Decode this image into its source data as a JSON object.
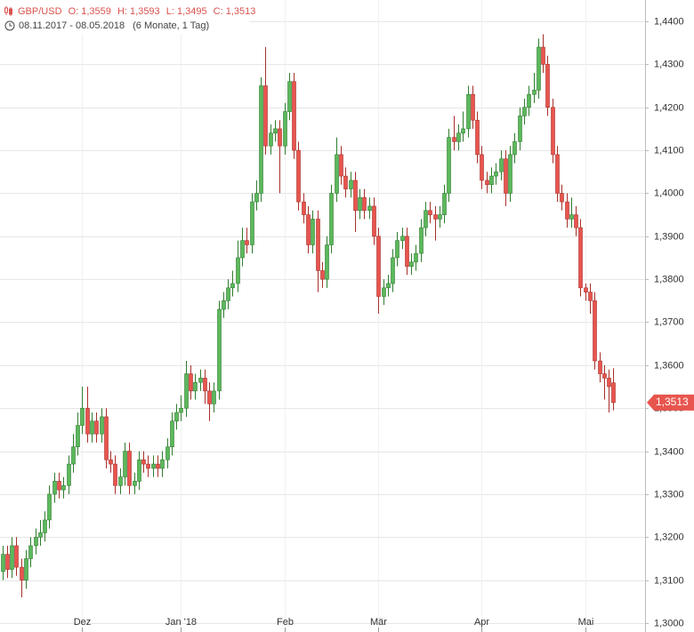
{
  "chart_data": {
    "type": "candlestick",
    "symbol": "GBP/USD",
    "last_labels": {
      "open": "O: 1,3559",
      "high": "H: 1,3593",
      "low": "L: 1,3495",
      "close": "C: 1,3513"
    },
    "date_range": "08.11.2017 - 08.05.2018",
    "period": "(6 Monate, 1 Tag)",
    "last_price_label": "1,3513",
    "up_color": "#5cb85c",
    "down_color": "#e8554e",
    "ylim": [
      1.3,
      1.44
    ],
    "yticks": [
      {
        "value": 1.3,
        "label": "1,3000"
      },
      {
        "value": 1.31,
        "label": "1,3100"
      },
      {
        "value": 1.32,
        "label": "1,3200"
      },
      {
        "value": 1.33,
        "label": "1,3300"
      },
      {
        "value": 1.34,
        "label": "1,3400"
      },
      {
        "value": 1.35,
        "label": "1,3500"
      },
      {
        "value": 1.36,
        "label": "1,3600"
      },
      {
        "value": 1.37,
        "label": "1,3700"
      },
      {
        "value": 1.38,
        "label": "1,3800"
      },
      {
        "value": 1.39,
        "label": "1,3900"
      },
      {
        "value": 1.4,
        "label": "1,4000"
      },
      {
        "value": 1.41,
        "label": "1,4100"
      },
      {
        "value": 1.42,
        "label": "1,4200"
      },
      {
        "value": 1.43,
        "label": "1,4300"
      },
      {
        "value": 1.44,
        "label": "1,4400"
      }
    ],
    "xticks": [
      {
        "value": 17,
        "label": "Dez"
      },
      {
        "value": 38,
        "label": "Jan '18"
      },
      {
        "value": 60,
        "label": "Feb"
      },
      {
        "value": 80,
        "label": "Mär"
      },
      {
        "value": 102,
        "label": "Apr"
      },
      {
        "value": 124,
        "label": "Mai"
      }
    ],
    "grid": true,
    "series": [
      {
        "name": "GBP/USD",
        "ohlc": [
          [
            1.312,
            1.318,
            1.31,
            1.316
          ],
          [
            1.316,
            1.318,
            1.3105,
            1.3125
          ],
          [
            1.3125,
            1.32,
            1.3105,
            1.318
          ],
          [
            1.318,
            1.32,
            1.311,
            1.313
          ],
          [
            1.313,
            1.315,
            1.306,
            1.31
          ],
          [
            1.31,
            1.317,
            1.308,
            1.315
          ],
          [
            1.315,
            1.32,
            1.313,
            1.318
          ],
          [
            1.318,
            1.322,
            1.316,
            1.32
          ],
          [
            1.32,
            1.324,
            1.318,
            1.321
          ],
          [
            1.321,
            1.326,
            1.319,
            1.324
          ],
          [
            1.324,
            1.332,
            1.322,
            1.33
          ],
          [
            1.33,
            1.335,
            1.328,
            1.333
          ],
          [
            1.333,
            1.335,
            1.329,
            1.331
          ],
          [
            1.331,
            1.334,
            1.329,
            1.332
          ],
          [
            1.332,
            1.339,
            1.33,
            1.337
          ],
          [
            1.337,
            1.344,
            1.335,
            1.341
          ],
          [
            1.341,
            1.349,
            1.339,
            1.346
          ],
          [
            1.346,
            1.355,
            1.344,
            1.35
          ],
          [
            1.35,
            1.355,
            1.342,
            1.344
          ],
          [
            1.344,
            1.349,
            1.342,
            1.347
          ],
          [
            1.347,
            1.349,
            1.342,
            1.344
          ],
          [
            1.344,
            1.35,
            1.342,
            1.348
          ],
          [
            1.348,
            1.35,
            1.336,
            1.338
          ],
          [
            1.338,
            1.34,
            1.335,
            1.337
          ],
          [
            1.337,
            1.339,
            1.33,
            1.332
          ],
          [
            1.332,
            1.336,
            1.33,
            1.334
          ],
          [
            1.334,
            1.342,
            1.332,
            1.34
          ],
          [
            1.34,
            1.342,
            1.33,
            1.332
          ],
          [
            1.332,
            1.335,
            1.33,
            1.333
          ],
          [
            1.333,
            1.34,
            1.331,
            1.338
          ],
          [
            1.338,
            1.34,
            1.335,
            1.337
          ],
          [
            1.337,
            1.339,
            1.334,
            1.336
          ],
          [
            1.336,
            1.339,
            1.334,
            1.337
          ],
          [
            1.337,
            1.339,
            1.334,
            1.336
          ],
          [
            1.336,
            1.34,
            1.334,
            1.338
          ],
          [
            1.338,
            1.343,
            1.336,
            1.341
          ],
          [
            1.341,
            1.349,
            1.339,
            1.347
          ],
          [
            1.347,
            1.351,
            1.345,
            1.349
          ],
          [
            1.349,
            1.353,
            1.347,
            1.35
          ],
          [
            1.35,
            1.361,
            1.348,
            1.358
          ],
          [
            1.358,
            1.36,
            1.352,
            1.354
          ],
          [
            1.354,
            1.358,
            1.352,
            1.356
          ],
          [
            1.356,
            1.359,
            1.354,
            1.357
          ],
          [
            1.357,
            1.359,
            1.351,
            1.354
          ],
          [
            1.354,
            1.356,
            1.347,
            1.351
          ],
          [
            1.351,
            1.356,
            1.349,
            1.354
          ],
          [
            1.354,
            1.375,
            1.352,
            1.373
          ],
          [
            1.373,
            1.377,
            1.371,
            1.375
          ],
          [
            1.375,
            1.38,
            1.373,
            1.378
          ],
          [
            1.378,
            1.382,
            1.376,
            1.379
          ],
          [
            1.379,
            1.389,
            1.377,
            1.385
          ],
          [
            1.385,
            1.392,
            1.383,
            1.389
          ],
          [
            1.389,
            1.392,
            1.386,
            1.388
          ],
          [
            1.388,
            1.4,
            1.386,
            1.398
          ],
          [
            1.398,
            1.403,
            1.396,
            1.4
          ],
          [
            1.4,
            1.427,
            1.398,
            1.425
          ],
          [
            1.425,
            1.434,
            1.409,
            1.411
          ],
          [
            1.411,
            1.416,
            1.409,
            1.414
          ],
          [
            1.414,
            1.417,
            1.412,
            1.415
          ],
          [
            1.415,
            1.417,
            1.4,
            1.411
          ],
          [
            1.411,
            1.421,
            1.409,
            1.419
          ],
          [
            1.419,
            1.428,
            1.417,
            1.426
          ],
          [
            1.426,
            1.428,
            1.408,
            1.41
          ],
          [
            1.41,
            1.412,
            1.396,
            1.398
          ],
          [
            1.398,
            1.4,
            1.393,
            1.395
          ],
          [
            1.395,
            1.397,
            1.386,
            1.388
          ],
          [
            1.388,
            1.396,
            1.386,
            1.394
          ],
          [
            1.394,
            1.396,
            1.377,
            1.382
          ],
          [
            1.382,
            1.384,
            1.378,
            1.38
          ],
          [
            1.38,
            1.39,
            1.378,
            1.388
          ],
          [
            1.388,
            1.402,
            1.386,
            1.4
          ],
          [
            1.4,
            1.413,
            1.398,
            1.409
          ],
          [
            1.409,
            1.411,
            1.402,
            1.404
          ],
          [
            1.404,
            1.406,
            1.399,
            1.401
          ],
          [
            1.401,
            1.405,
            1.399,
            1.403
          ],
          [
            1.403,
            1.405,
            1.391,
            1.396
          ],
          [
            1.396,
            1.401,
            1.394,
            1.399
          ],
          [
            1.399,
            1.401,
            1.394,
            1.396
          ],
          [
            1.396,
            1.399,
            1.394,
            1.397
          ],
          [
            1.397,
            1.399,
            1.388,
            1.39
          ],
          [
            1.39,
            1.392,
            1.372,
            1.376
          ],
          [
            1.376,
            1.38,
            1.374,
            1.378
          ],
          [
            1.378,
            1.381,
            1.376,
            1.379
          ],
          [
            1.379,
            1.387,
            1.377,
            1.385
          ],
          [
            1.385,
            1.391,
            1.383,
            1.389
          ],
          [
            1.389,
            1.392,
            1.387,
            1.39
          ],
          [
            1.39,
            1.392,
            1.381,
            1.383
          ],
          [
            1.383,
            1.386,
            1.381,
            1.384
          ],
          [
            1.384,
            1.388,
            1.382,
            1.386
          ],
          [
            1.386,
            1.394,
            1.384,
            1.392
          ],
          [
            1.392,
            1.398,
            1.39,
            1.396
          ],
          [
            1.396,
            1.398,
            1.393,
            1.395
          ],
          [
            1.395,
            1.397,
            1.389,
            1.394
          ],
          [
            1.394,
            1.397,
            1.392,
            1.395
          ],
          [
            1.395,
            1.402,
            1.393,
            1.4
          ],
          [
            1.4,
            1.415,
            1.398,
            1.413
          ],
          [
            1.413,
            1.418,
            1.41,
            1.412
          ],
          [
            1.412,
            1.416,
            1.41,
            1.414
          ],
          [
            1.414,
            1.419,
            1.412,
            1.415
          ],
          [
            1.415,
            1.425,
            1.413,
            1.423
          ],
          [
            1.423,
            1.425,
            1.415,
            1.417
          ],
          [
            1.417,
            1.419,
            1.407,
            1.409
          ],
          [
            1.409,
            1.411,
            1.401,
            1.403
          ],
          [
            1.403,
            1.405,
            1.4,
            1.402
          ],
          [
            1.402,
            1.406,
            1.4,
            1.404
          ],
          [
            1.404,
            1.407,
            1.402,
            1.405
          ],
          [
            1.405,
            1.41,
            1.403,
            1.408
          ],
          [
            1.408,
            1.41,
            1.397,
            1.4
          ],
          [
            1.4,
            1.411,
            1.398,
            1.409
          ],
          [
            1.409,
            1.414,
            1.407,
            1.412
          ],
          [
            1.412,
            1.42,
            1.41,
            1.418
          ],
          [
            1.418,
            1.422,
            1.416,
            1.42
          ],
          [
            1.42,
            1.425,
            1.418,
            1.423
          ],
          [
            1.423,
            1.428,
            1.421,
            1.424
          ],
          [
            1.424,
            1.436,
            1.422,
            1.434
          ],
          [
            1.434,
            1.437,
            1.428,
            1.43
          ],
          [
            1.43,
            1.432,
            1.418,
            1.42
          ],
          [
            1.42,
            1.422,
            1.407,
            1.409
          ],
          [
            1.409,
            1.411,
            1.398,
            1.4
          ],
          [
            1.4,
            1.402,
            1.396,
            1.398
          ],
          [
            1.398,
            1.4,
            1.392,
            1.394
          ],
          [
            1.394,
            1.399,
            1.392,
            1.395
          ],
          [
            1.395,
            1.397,
            1.39,
            1.392
          ],
          [
            1.392,
            1.394,
            1.376,
            1.378
          ],
          [
            1.378,
            1.379,
            1.375,
            1.377
          ],
          [
            1.377,
            1.379,
            1.372,
            1.375
          ],
          [
            1.375,
            1.377,
            1.359,
            1.361
          ],
          [
            1.361,
            1.363,
            1.356,
            1.358
          ],
          [
            1.358,
            1.36,
            1.352,
            1.357
          ],
          [
            1.357,
            1.359,
            1.349,
            1.355
          ],
          [
            1.3559,
            1.3593,
            1.3495,
            1.3513
          ]
        ]
      }
    ]
  }
}
